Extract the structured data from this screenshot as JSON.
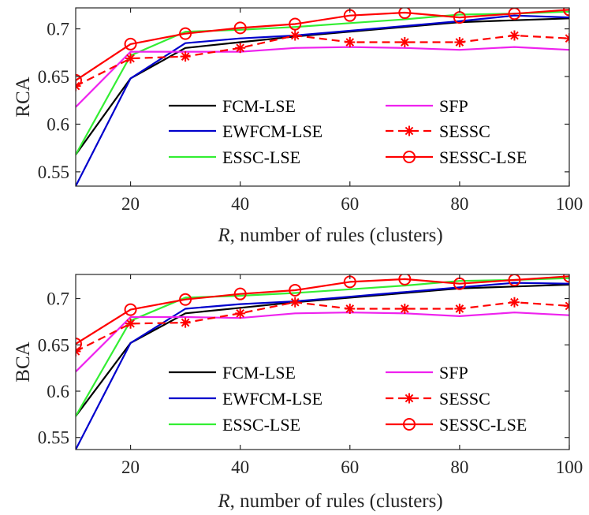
{
  "chart_data": [
    {
      "type": "line",
      "ylabel": "RCA",
      "xlabel_italic": "R",
      "xlabel_rest": ", number of rules (clusters)",
      "x": [
        10,
        20,
        30,
        40,
        50,
        60,
        70,
        80,
        90,
        100
      ],
      "xlim": [
        10,
        100
      ],
      "ylim": [
        0.535,
        0.722
      ],
      "xticks": [
        20,
        40,
        60,
        80,
        100
      ],
      "xtick_labels": [
        "20",
        "40",
        "60",
        "80",
        "100"
      ],
      "yticks": [
        0.55,
        0.6,
        0.65,
        0.7
      ],
      "ytick_labels": [
        "0.55",
        "0.6",
        "0.65",
        "0.7"
      ],
      "legend_position": "lower-right",
      "series": [
        {
          "name": "FCM-LSE",
          "color": "#000000",
          "style": "solid",
          "marker": "none",
          "values": [
            0.568,
            0.648,
            0.68,
            0.686,
            0.692,
            0.697,
            0.702,
            0.707,
            0.709,
            0.711
          ]
        },
        {
          "name": "EWFCM-LSE",
          "color": "#0000cc",
          "style": "solid",
          "marker": "none",
          "values": [
            0.535,
            0.648,
            0.685,
            0.69,
            0.693,
            0.698,
            0.703,
            0.708,
            0.714,
            0.712
          ]
        },
        {
          "name": "ESSC-LSE",
          "color": "#33ee33",
          "style": "solid",
          "marker": "none",
          "values": [
            0.568,
            0.672,
            0.697,
            0.699,
            0.702,
            0.706,
            0.71,
            0.715,
            0.716,
            0.718
          ]
        },
        {
          "name": "SFP",
          "color": "#ee22ee",
          "style": "solid",
          "marker": "none",
          "values": [
            0.618,
            0.676,
            0.676,
            0.676,
            0.68,
            0.681,
            0.68,
            0.678,
            0.681,
            0.678
          ]
        },
        {
          "name": "SESSC",
          "color": "#ff0000",
          "style": "dashed",
          "marker": "star",
          "values": [
            0.64,
            0.669,
            0.671,
            0.68,
            0.693,
            0.686,
            0.686,
            0.686,
            0.693,
            0.69
          ]
        },
        {
          "name": "SESSC-LSE",
          "color": "#ff0000",
          "style": "solid",
          "marker": "circle",
          "values": [
            0.646,
            0.684,
            0.695,
            0.701,
            0.705,
            0.714,
            0.717,
            0.712,
            0.716,
            0.72
          ]
        }
      ]
    },
    {
      "type": "line",
      "ylabel": "BCA",
      "xlabel_italic": "R",
      "xlabel_rest": ", number of rules (clusters)",
      "x": [
        10,
        20,
        30,
        40,
        50,
        60,
        70,
        80,
        90,
        100
      ],
      "xlim": [
        10,
        100
      ],
      "ylim": [
        0.537,
        0.726
      ],
      "xticks": [
        20,
        40,
        60,
        80,
        100
      ],
      "xtick_labels": [
        "20",
        "40",
        "60",
        "80",
        "100"
      ],
      "yticks": [
        0.55,
        0.6,
        0.65,
        0.7
      ],
      "ytick_labels": [
        "0.55",
        "0.6",
        "0.65",
        "0.7"
      ],
      "legend_position": "lower-right",
      "series": [
        {
          "name": "FCM-LSE",
          "color": "#000000",
          "style": "solid",
          "marker": "none",
          "values": [
            0.573,
            0.652,
            0.684,
            0.69,
            0.696,
            0.701,
            0.706,
            0.711,
            0.713,
            0.715
          ]
        },
        {
          "name": "EWFCM-LSE",
          "color": "#0000cc",
          "style": "solid",
          "marker": "none",
          "values": [
            0.537,
            0.652,
            0.689,
            0.694,
            0.697,
            0.702,
            0.707,
            0.712,
            0.717,
            0.716
          ]
        },
        {
          "name": "ESSC-LSE",
          "color": "#33ee33",
          "style": "solid",
          "marker": "none",
          "values": [
            0.573,
            0.676,
            0.701,
            0.703,
            0.706,
            0.71,
            0.714,
            0.719,
            0.72,
            0.722
          ]
        },
        {
          "name": "SFP",
          "color": "#ee22ee",
          "style": "solid",
          "marker": "none",
          "values": [
            0.621,
            0.68,
            0.68,
            0.679,
            0.684,
            0.685,
            0.684,
            0.681,
            0.685,
            0.682
          ]
        },
        {
          "name": "SESSC",
          "color": "#ff0000",
          "style": "dashed",
          "marker": "star",
          "values": [
            0.643,
            0.673,
            0.674,
            0.684,
            0.696,
            0.689,
            0.689,
            0.689,
            0.696,
            0.692
          ]
        },
        {
          "name": "SESSC-LSE",
          "color": "#ff0000",
          "style": "solid",
          "marker": "circle",
          "values": [
            0.651,
            0.688,
            0.699,
            0.705,
            0.709,
            0.718,
            0.721,
            0.716,
            0.72,
            0.724
          ]
        }
      ]
    }
  ]
}
